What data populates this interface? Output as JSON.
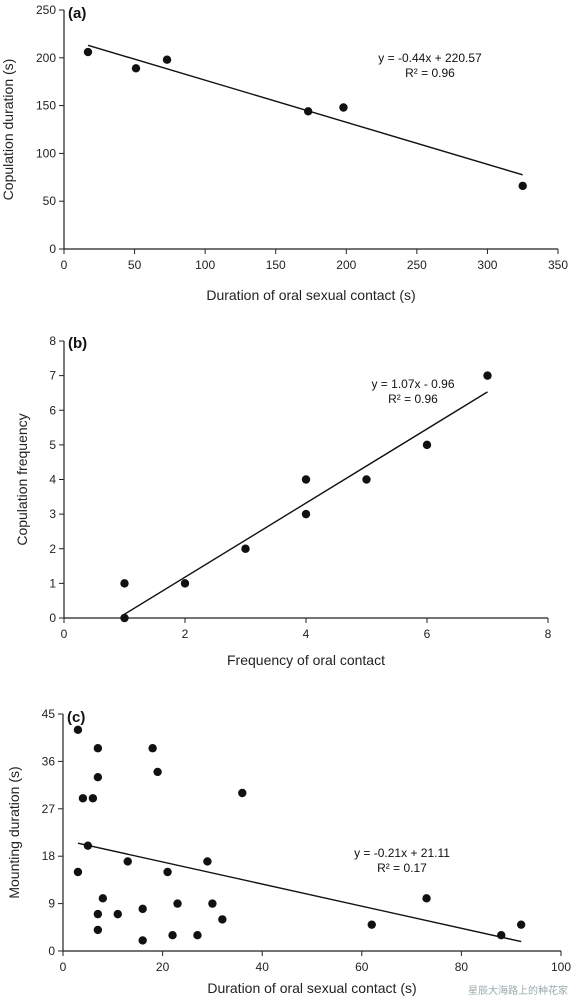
{
  "chart_data": [
    {
      "type": "scatter",
      "panel": "(a)",
      "xlabel": "Duration of oral sexual contact (s)",
      "ylabel": "Copulation duration (s)",
      "xlim": [
        0,
        350
      ],
      "ylim": [
        0,
        250
      ],
      "xticks": [
        0,
        50,
        100,
        150,
        200,
        250,
        300,
        350
      ],
      "yticks": [
        0,
        50,
        100,
        150,
        200,
        250
      ],
      "points": [
        [
          17,
          206
        ],
        [
          51,
          189
        ],
        [
          73,
          198
        ],
        [
          173,
          144
        ],
        [
          198,
          148
        ],
        [
          325,
          66
        ]
      ],
      "trendline": {
        "slope": -0.44,
        "intercept": 220.57,
        "x_range": [
          17,
          325
        ]
      },
      "equation": "y = -0.44x + 220.57",
      "r2": "R² = 0.96",
      "grid": false
    },
    {
      "type": "scatter",
      "panel": "(b)",
      "xlabel": "Frequency of oral contact",
      "ylabel": "Copulation frequency",
      "xlim": [
        0,
        8
      ],
      "ylim": [
        0,
        8
      ],
      "xticks": [
        0,
        2,
        4,
        6,
        8
      ],
      "yticks": [
        0,
        1,
        2,
        3,
        4,
        5,
        6,
        7,
        8
      ],
      "points": [
        [
          1,
          0
        ],
        [
          1,
          1
        ],
        [
          2,
          1
        ],
        [
          3,
          2
        ],
        [
          4,
          3
        ],
        [
          4,
          4
        ],
        [
          5,
          4
        ],
        [
          6,
          5
        ],
        [
          7,
          7
        ]
      ],
      "trendline": {
        "slope": 1.07,
        "intercept": -0.96,
        "x_range": [
          1,
          7
        ]
      },
      "equation": "y = 1.07x - 0.96",
      "r2": "R² = 0.96",
      "grid": false
    },
    {
      "type": "scatter",
      "panel": "(c)",
      "xlabel": "Duration of oral sexual contact (s)",
      "ylabel": "Mounting duration (s)",
      "xlim": [
        0,
        100
      ],
      "ylim": [
        0,
        45
      ],
      "xticks": [
        0,
        20,
        40,
        60,
        80,
        100
      ],
      "yticks": [
        0,
        9,
        18,
        27,
        36,
        45
      ],
      "points": [
        [
          3,
          42
        ],
        [
          7,
          38.5
        ],
        [
          18,
          38.5
        ],
        [
          19,
          34
        ],
        [
          7,
          33
        ],
        [
          4,
          29
        ],
        [
          6,
          29
        ],
        [
          36,
          30
        ],
        [
          5,
          20
        ],
        [
          3,
          15
        ],
        [
          13,
          17
        ],
        [
          21,
          15
        ],
        [
          29,
          17
        ],
        [
          8,
          10
        ],
        [
          7,
          7
        ],
        [
          11,
          7
        ],
        [
          16,
          8
        ],
        [
          23,
          9
        ],
        [
          30,
          9
        ],
        [
          32,
          6
        ],
        [
          7,
          4
        ],
        [
          16,
          2
        ],
        [
          22,
          3
        ],
        [
          27,
          3
        ],
        [
          62,
          5
        ],
        [
          73,
          10
        ],
        [
          88,
          3
        ],
        [
          92,
          5
        ]
      ],
      "trendline": {
        "slope": -0.21,
        "intercept": 21.11,
        "x_range": [
          3,
          92
        ]
      },
      "equation": "y = -0.21x + 21.11",
      "r2": "R² = 0.17",
      "grid": false
    }
  ],
  "watermark": "星辰大海路上的种花家"
}
